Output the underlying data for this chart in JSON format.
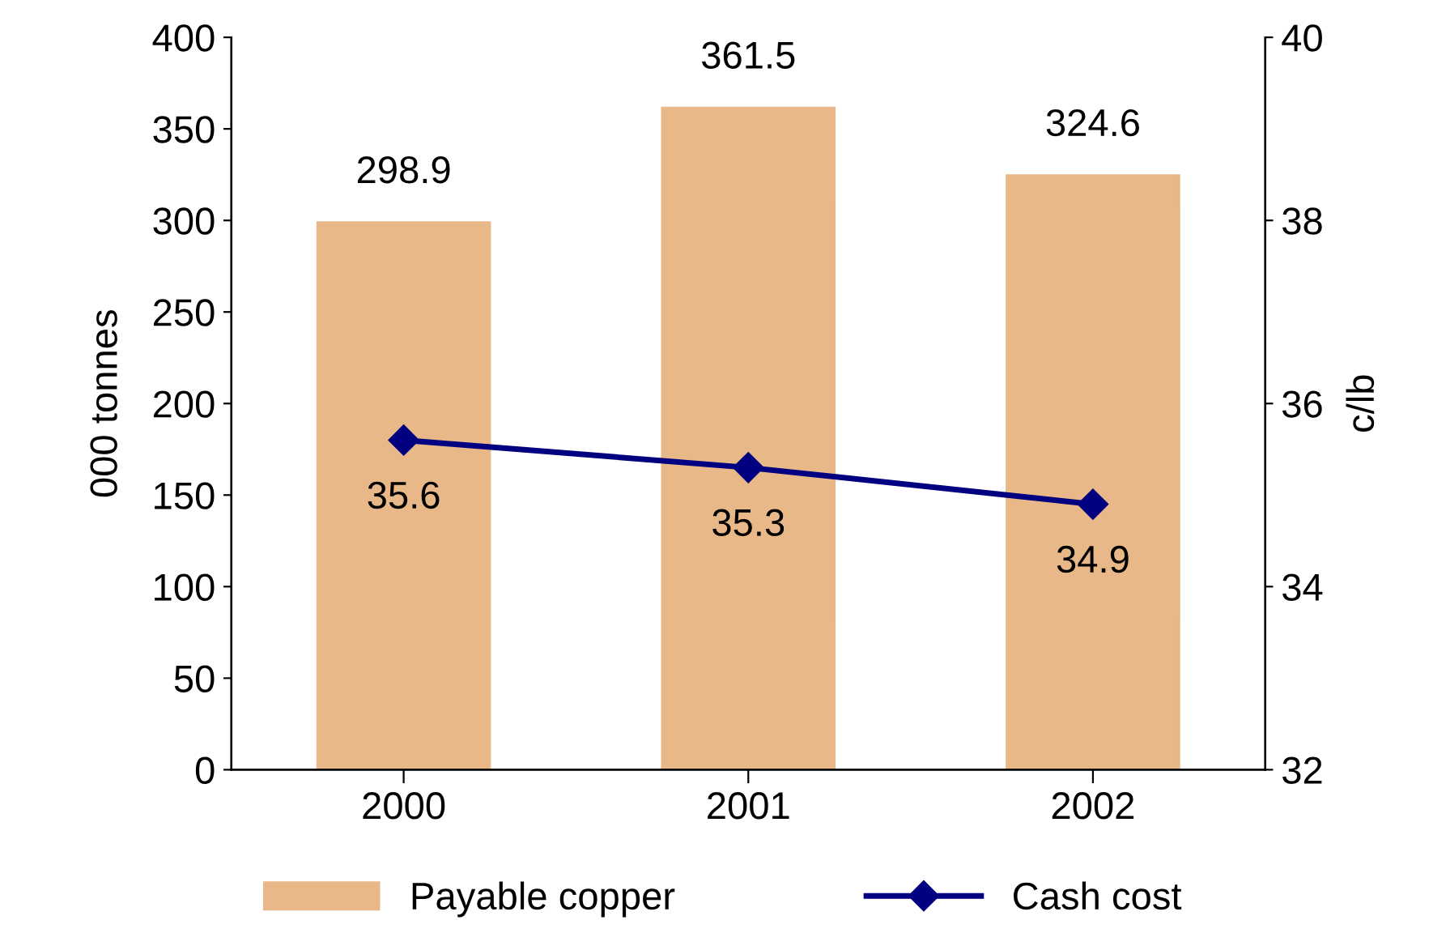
{
  "chart_data": {
    "type": "bar",
    "categories": [
      "2000",
      "2001",
      "2002"
    ],
    "ylabel": "000 tonnes",
    "y2label": "c/lb",
    "series": [
      {
        "name": "Payable copper",
        "color": "#e8b888",
        "values": [
          298.9,
          361.5,
          324.6
        ]
      },
      {
        "name": "Cash cost",
        "type": "line",
        "axis": "y2",
        "color": "#000080",
        "values": [
          35.6,
          35.3,
          34.9
        ],
        "marker": "diamond"
      }
    ],
    "ylim": [
      0,
      400
    ],
    "yticks": [
      0,
      50,
      100,
      150,
      200,
      250,
      300,
      350,
      400
    ],
    "y2lim": [
      32,
      40
    ],
    "y2ticks": [
      32,
      34,
      36,
      38,
      40
    ],
    "data_labels": true,
    "grid": false,
    "legend": "bottom"
  }
}
